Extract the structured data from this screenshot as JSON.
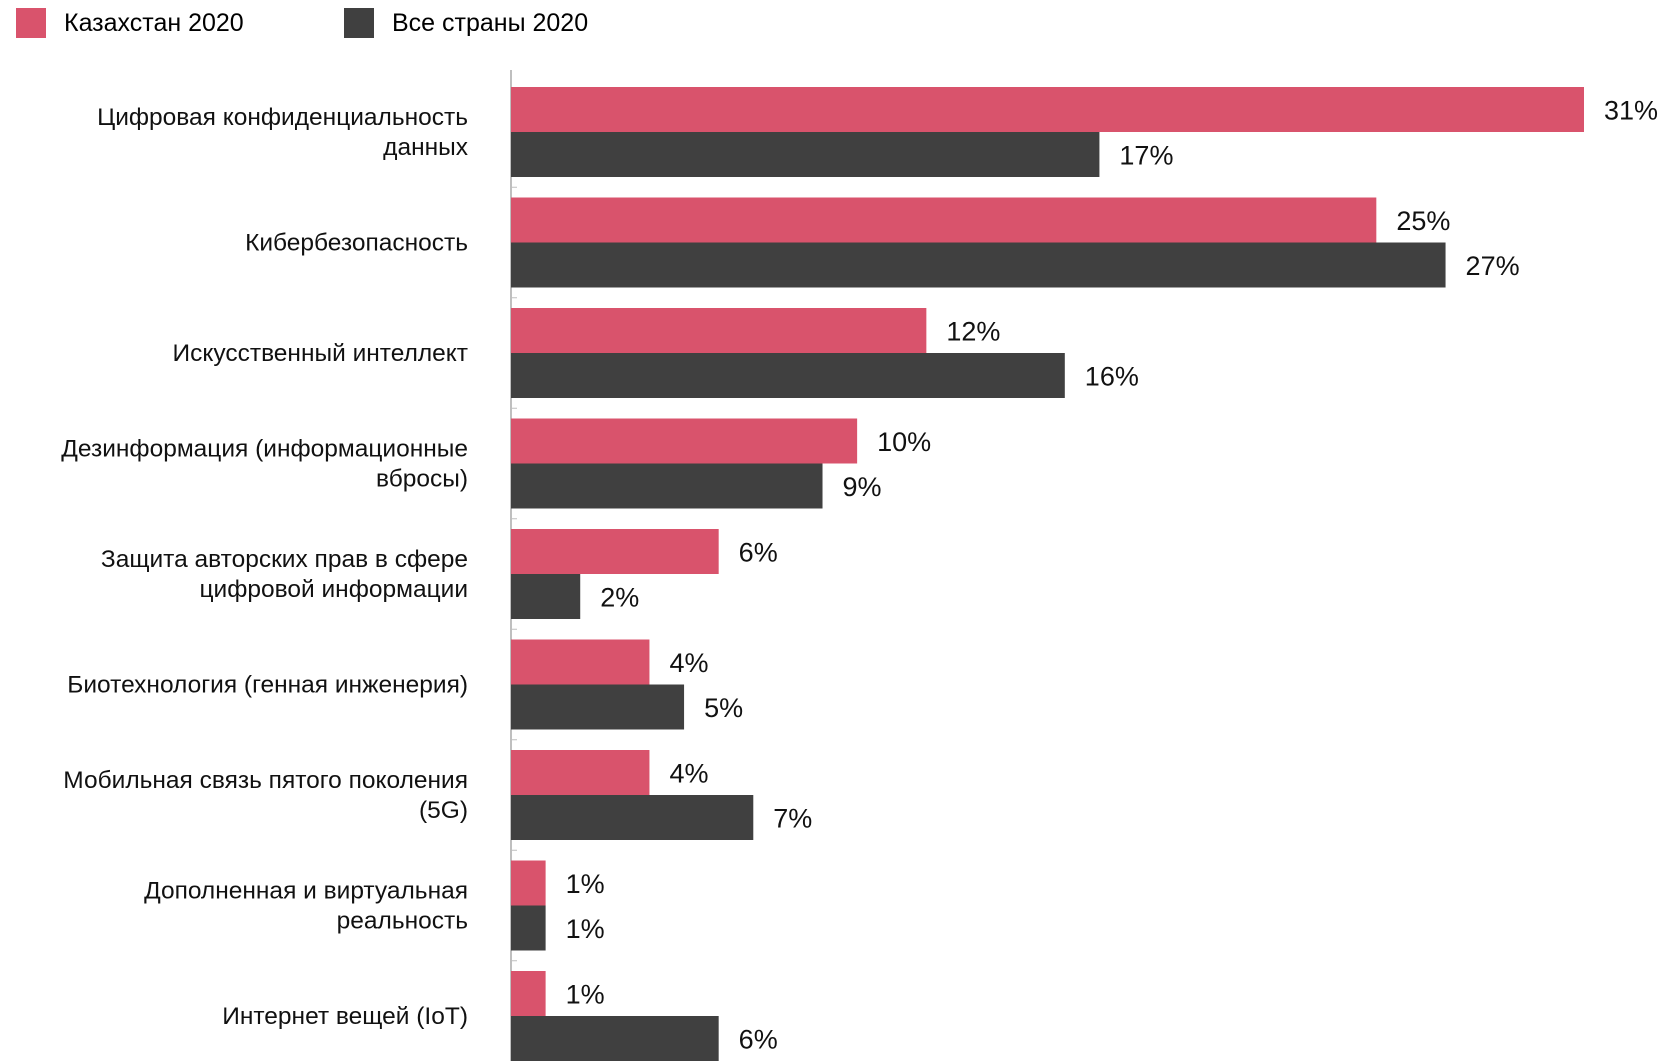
{
  "chart_data": {
    "type": "bar",
    "orientation": "horizontal",
    "title": "",
    "xlabel": "",
    "ylabel": "",
    "xlim": [
      0,
      31
    ],
    "grid": false,
    "legend_position": "top-left",
    "value_suffix": "%",
    "categories": [
      [
        "Цифровая конфиденциальность",
        "данных"
      ],
      [
        "Кибербезопасность"
      ],
      [
        "Искусственный интеллект"
      ],
      [
        "Дезинформация (информационные",
        "вбросы)"
      ],
      [
        "Защита авторских прав в сфере",
        "цифровой информации"
      ],
      [
        "Биотехнология (генная инженерия)"
      ],
      [
        "Мобильная связь пятого поколения",
        "(5G)"
      ],
      [
        "Дополненная и виртуальная",
        "реальность"
      ],
      [
        "Интернет вещей (IoT)"
      ]
    ],
    "series": [
      {
        "name": "Казахстан 2020",
        "color": "#d9536c",
        "values": [
          31,
          25,
          12,
          10,
          6,
          4,
          4,
          1,
          1
        ]
      },
      {
        "name": "Все страны 2020",
        "color": "#404040",
        "values": [
          17,
          27,
          16,
          9,
          2,
          5,
          7,
          1,
          6
        ]
      }
    ]
  }
}
